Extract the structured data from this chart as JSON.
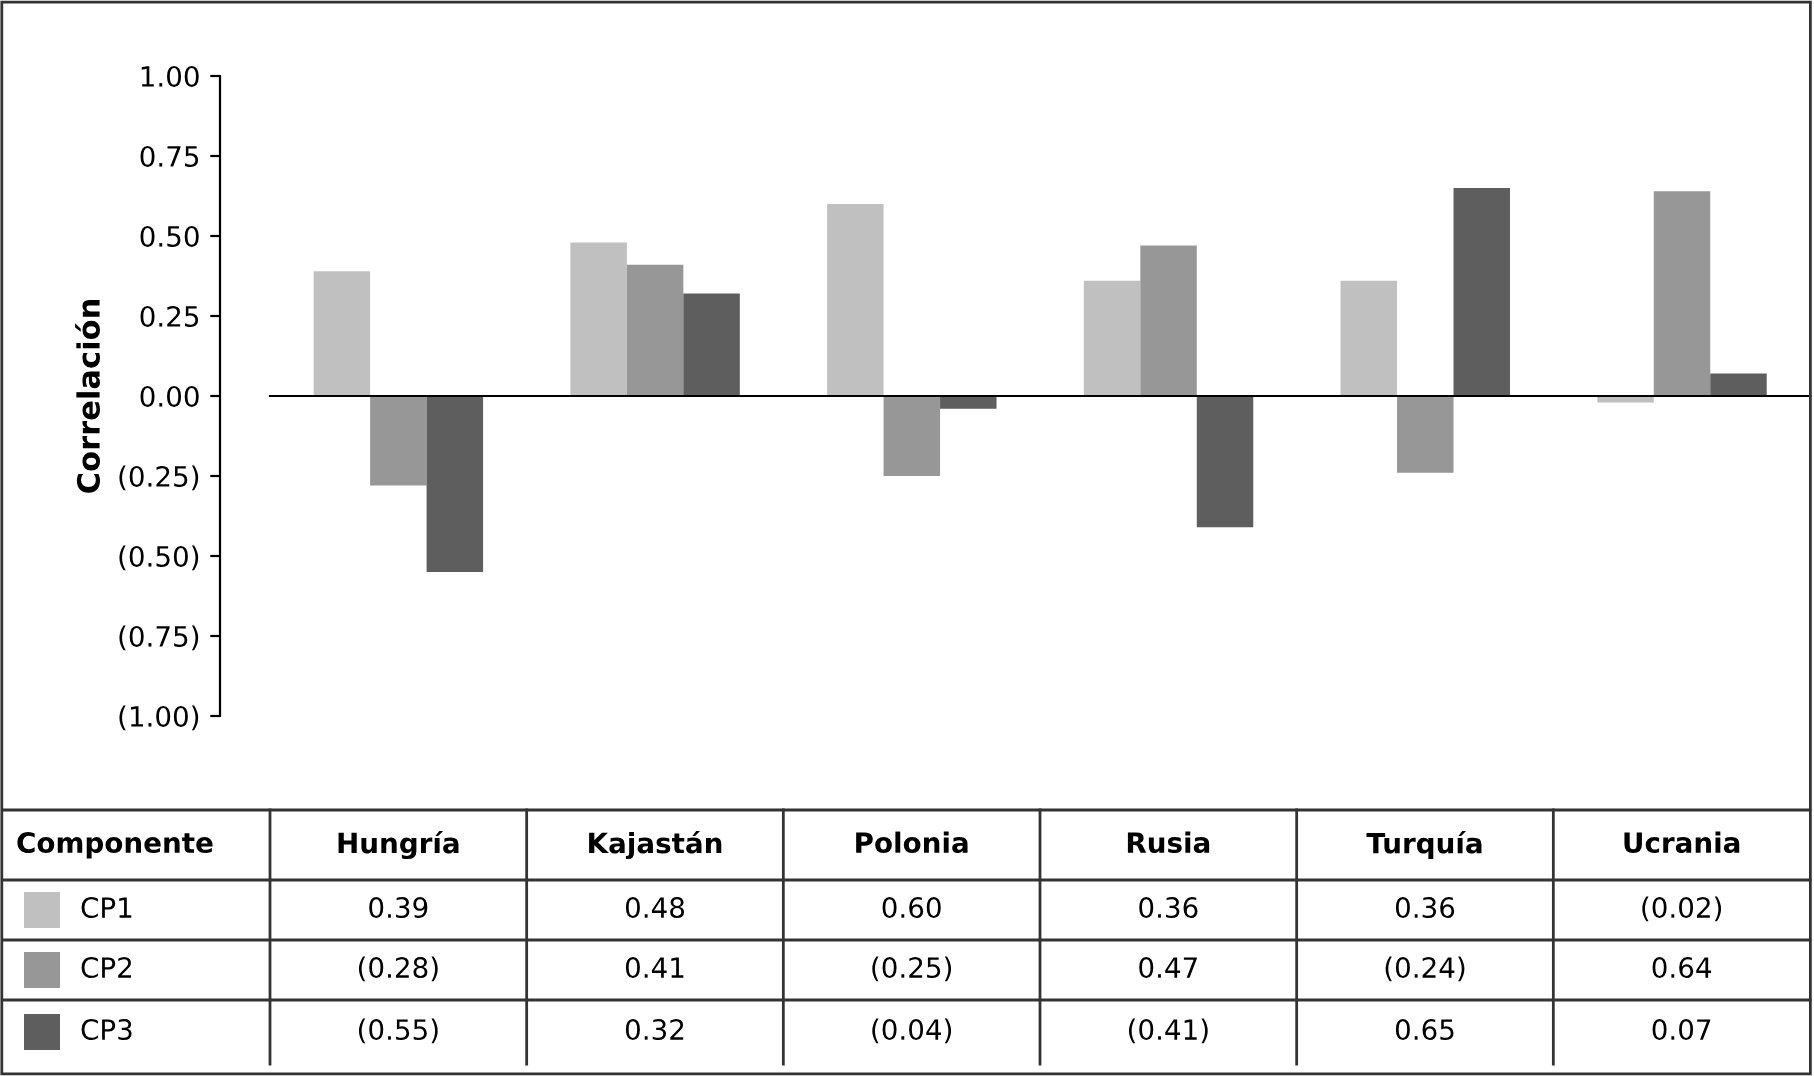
{
  "chart_data": {
    "type": "bar",
    "ylabel": "Correlación",
    "legend_title": "Componente",
    "legend": "bottom",
    "categories": [
      "Hungría",
      "Kajastán",
      "Polonia",
      "Rusia",
      "Turquía",
      "Ucrania"
    ],
    "series": [
      {
        "name": "CP1",
        "color": "#c0c0c0",
        "values": [
          0.39,
          0.48,
          0.6,
          0.36,
          0.36,
          -0.02
        ],
        "value_labels": [
          "0.39",
          "0.48",
          "0.60",
          "0.36",
          "0.36",
          "(0.02)"
        ]
      },
      {
        "name": "CP2",
        "color": "#979797",
        "values": [
          -0.28,
          0.41,
          -0.25,
          0.47,
          -0.24,
          0.64
        ],
        "value_labels": [
          "(0.28)",
          "0.41",
          "(0.25)",
          "0.47",
          "(0.24)",
          "0.64"
        ]
      },
      {
        "name": "CP3",
        "color": "#5e5e5e",
        "values": [
          -0.55,
          0.32,
          -0.04,
          -0.41,
          0.65,
          0.07
        ],
        "value_labels": [
          "(0.55)",
          "0.32",
          "(0.04)",
          "(0.41)",
          "0.65",
          "0.07"
        ]
      }
    ],
    "ylim": [
      -1,
      1
    ],
    "yticks": [
      {
        "value": 1,
        "label": "1.00"
      },
      {
        "value": 0.75,
        "label": "0.75"
      },
      {
        "value": 0.5,
        "label": "0.50"
      },
      {
        "value": 0.25,
        "label": "0.25"
      },
      {
        "value": 0,
        "label": "0.00"
      },
      {
        "value": -0.25,
        "label": "(0.25)"
      },
      {
        "value": -0.5,
        "label": "(0.50)"
      },
      {
        "value": -0.75,
        "label": "(0.75)"
      },
      {
        "value": -1,
        "label": "(1.00)"
      }
    ]
  }
}
